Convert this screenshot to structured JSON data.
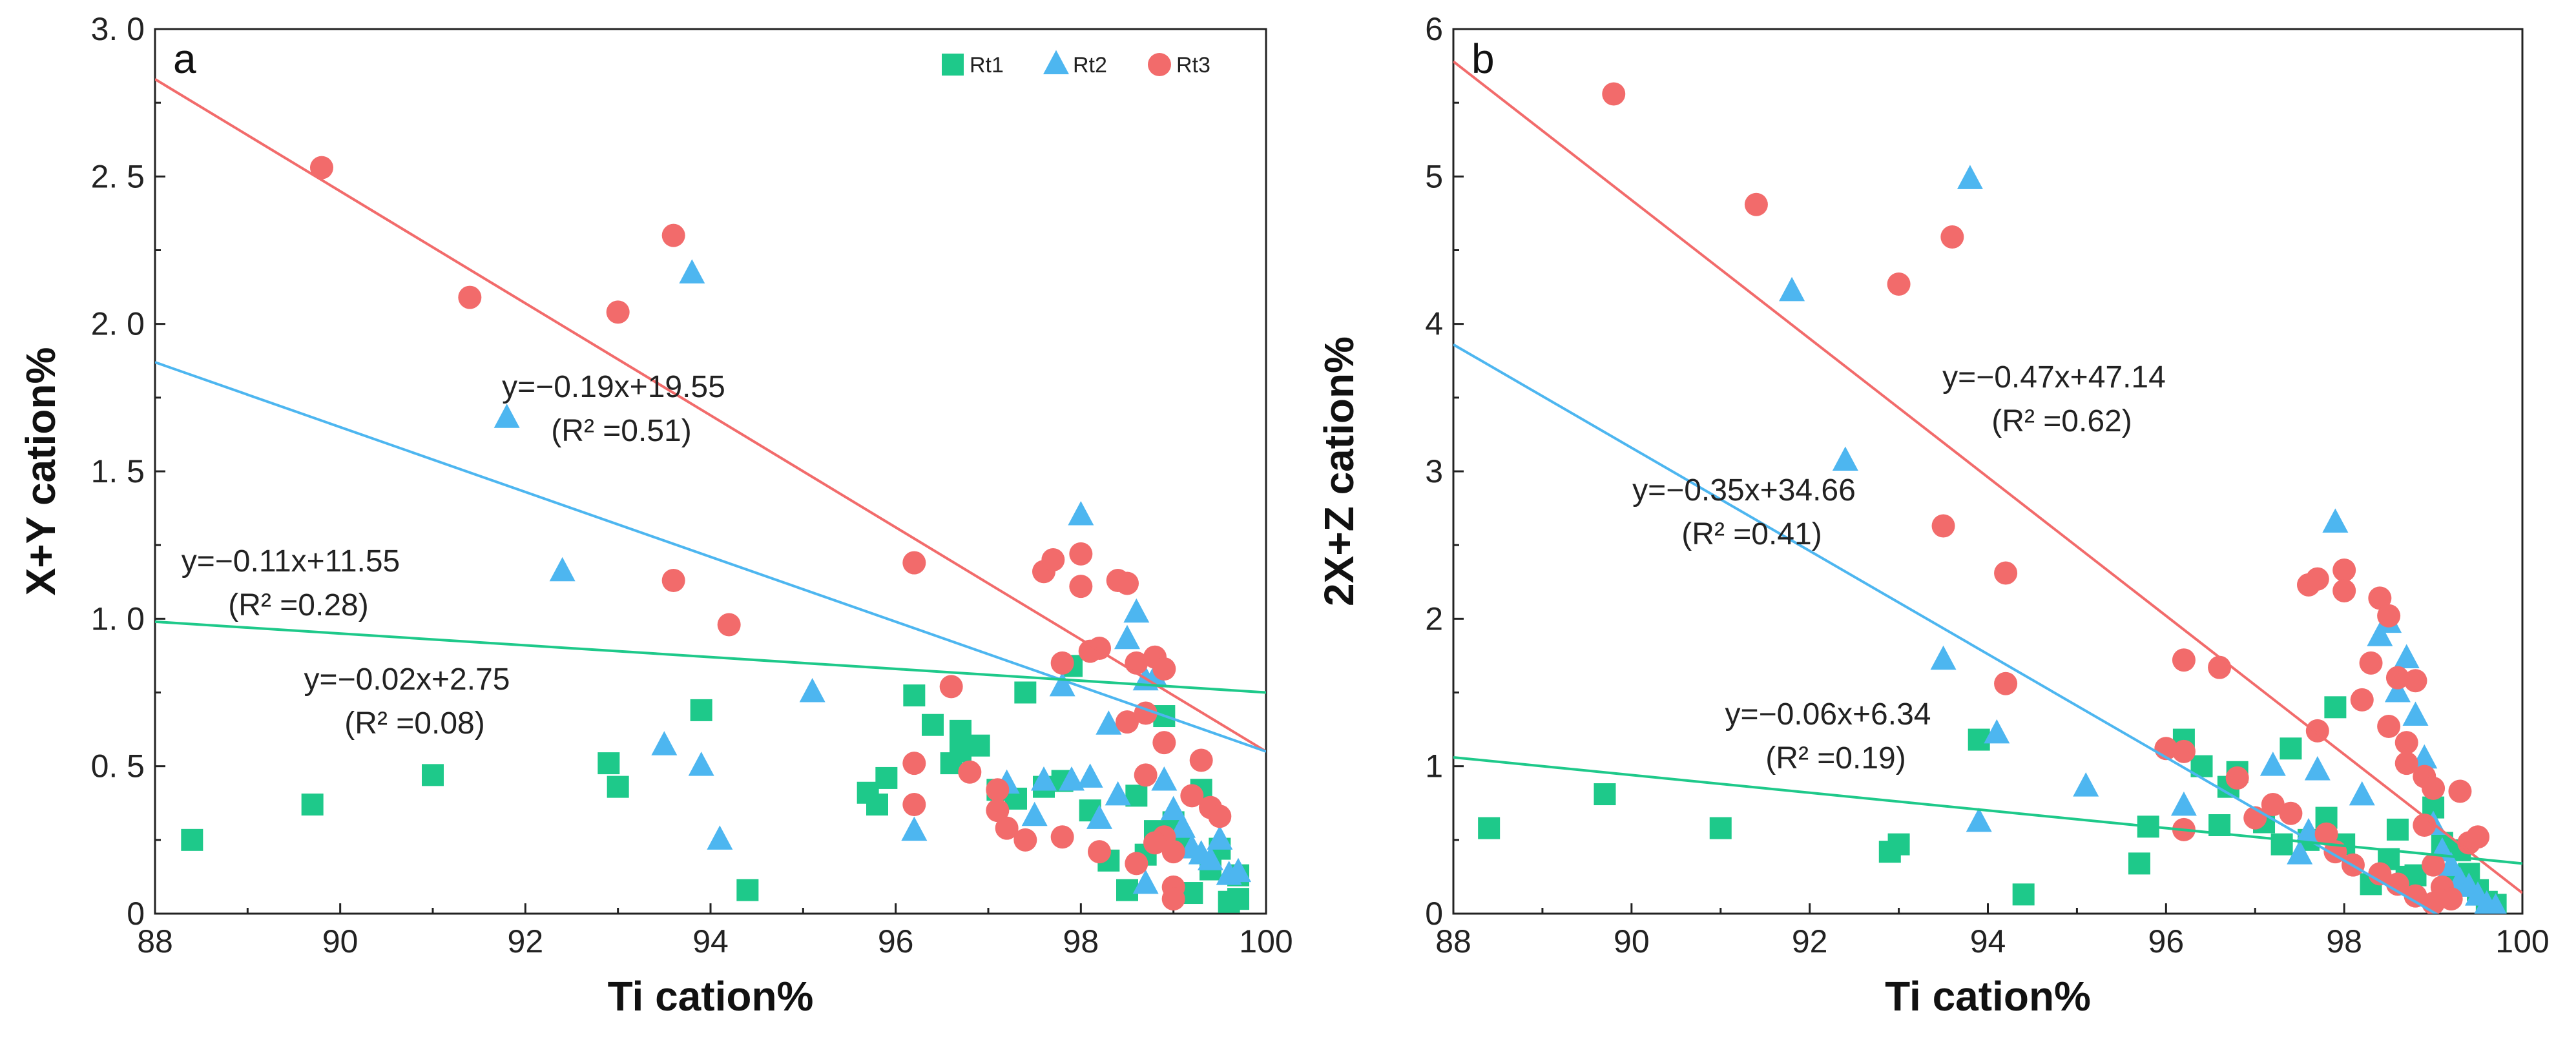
{
  "chart_data": [
    {
      "type": "scatter",
      "panel_label": "a",
      "xlabel": "Ti cation%",
      "ylabel": "X+Y cation%",
      "xlim": [
        88,
        100
      ],
      "ylim": [
        0,
        3.0
      ],
      "xticks": [
        "88",
        "90",
        "92",
        "94",
        "96",
        "98",
        "100"
      ],
      "yticks": [
        "0",
        "0. 5",
        "1. 0",
        "1. 5",
        "2. 0",
        "2. 5",
        "3. 0"
      ],
      "legend": [
        "Rt1",
        "Rt2",
        "Rt3"
      ],
      "colors": {
        "Rt1": "#1ec98a",
        "Rt2": "#4db6f0",
        "Rt3": "#f26b6b"
      },
      "fits": [
        {
          "series": "Rt3",
          "slope": -0.19,
          "intercept": 19.55,
          "equation": "y=−0.19x+19.55",
          "r2": "(R² =0.51)"
        },
        {
          "series": "Rt2",
          "slope": -0.11,
          "intercept": 11.55,
          "equation": "y=−0.11x+11.55",
          "r2": "(R² =0.28)"
        },
        {
          "series": "Rt1",
          "slope": -0.02,
          "intercept": 2.75,
          "equation": "y=−0.02x+2.75",
          "r2": "(R² =0.08)"
        }
      ],
      "series": [
        {
          "name": "Rt1",
          "marker": "square",
          "points": [
            [
              88.4,
              0.25
            ],
            [
              89.7,
              0.37
            ],
            [
              91.0,
              0.47
            ],
            [
              92.9,
              0.51
            ],
            [
              93.0,
              0.43
            ],
            [
              93.9,
              0.69
            ],
            [
              94.4,
              0.08
            ],
            [
              95.7,
              0.41
            ],
            [
              95.8,
              0.37
            ],
            [
              95.9,
              0.46
            ],
            [
              96.2,
              0.74
            ],
            [
              96.4,
              0.64
            ],
            [
              96.6,
              0.51
            ],
            [
              96.7,
              0.55
            ],
            [
              96.7,
              0.62
            ],
            [
              96.9,
              0.57
            ],
            [
              97.1,
              0.42
            ],
            [
              97.3,
              0.39
            ],
            [
              97.4,
              0.75
            ],
            [
              97.6,
              0.43
            ],
            [
              97.8,
              0.45
            ],
            [
              97.9,
              0.84
            ],
            [
              98.1,
              0.35
            ],
            [
              98.3,
              0.18
            ],
            [
              98.5,
              0.08
            ],
            [
              98.6,
              0.4
            ],
            [
              98.7,
              0.2
            ],
            [
              98.8,
              0.28
            ],
            [
              98.9,
              0.67
            ],
            [
              99.0,
              0.31
            ],
            [
              99.1,
              0.23
            ],
            [
              99.2,
              0.07
            ],
            [
              99.3,
              0.42
            ],
            [
              99.4,
              0.15
            ],
            [
              99.5,
              0.22
            ],
            [
              99.6,
              0.04
            ],
            [
              99.7,
              0.05
            ],
            [
              99.7,
              0.13
            ]
          ]
        },
        {
          "name": "Rt2",
          "marker": "triangle",
          "points": [
            [
              91.8,
              1.68
            ],
            [
              92.4,
              1.16
            ],
            [
              93.5,
              0.57
            ],
            [
              93.8,
              2.17
            ],
            [
              93.9,
              0.5
            ],
            [
              94.1,
              0.25
            ],
            [
              95.1,
              0.75
            ],
            [
              96.2,
              0.28
            ],
            [
              97.2,
              0.44
            ],
            [
              97.5,
              0.33
            ],
            [
              97.6,
              0.45
            ],
            [
              97.8,
              0.77
            ],
            [
              97.9,
              0.45
            ],
            [
              98.0,
              1.35
            ],
            [
              98.1,
              0.46
            ],
            [
              98.2,
              0.32
            ],
            [
              98.3,
              0.64
            ],
            [
              98.4,
              0.4
            ],
            [
              98.5,
              0.93
            ],
            [
              98.6,
              1.02
            ],
            [
              98.7,
              0.79
            ],
            [
              98.8,
              0.8
            ],
            [
              98.9,
              0.45
            ],
            [
              99.0,
              0.35
            ],
            [
              99.1,
              0.29
            ],
            [
              99.2,
              0.22
            ],
            [
              99.3,
              0.2
            ],
            [
              99.4,
              0.18
            ],
            [
              99.5,
              0.25
            ],
            [
              99.6,
              0.13
            ],
            [
              99.7,
              0.14
            ],
            [
              98.7,
              0.1
            ]
          ]
        },
        {
          "name": "Rt3",
          "marker": "circle",
          "points": [
            [
              89.8,
              2.53
            ],
            [
              91.4,
              2.09
            ],
            [
              93.0,
              2.04
            ],
            [
              93.6,
              2.3
            ],
            [
              93.6,
              1.13
            ],
            [
              94.2,
              0.98
            ],
            [
              96.2,
              1.19
            ],
            [
              96.2,
              0.51
            ],
            [
              96.2,
              0.37
            ],
            [
              96.6,
              0.77
            ],
            [
              96.8,
              0.48
            ],
            [
              97.1,
              0.42
            ],
            [
              97.1,
              0.35
            ],
            [
              97.2,
              0.29
            ],
            [
              97.4,
              0.25
            ],
            [
              97.6,
              1.16
            ],
            [
              97.7,
              1.2
            ],
            [
              97.8,
              0.85
            ],
            [
              97.8,
              0.26
            ],
            [
              98.0,
              1.22
            ],
            [
              98.0,
              1.11
            ],
            [
              98.1,
              0.89
            ],
            [
              98.2,
              0.9
            ],
            [
              98.2,
              0.21
            ],
            [
              98.4,
              1.13
            ],
            [
              98.5,
              1.12
            ],
            [
              98.5,
              0.65
            ],
            [
              98.6,
              0.85
            ],
            [
              98.7,
              0.68
            ],
            [
              98.7,
              0.47
            ],
            [
              98.8,
              0.87
            ],
            [
              98.9,
              0.83
            ],
            [
              98.9,
              0.58
            ],
            [
              98.9,
              0.26
            ],
            [
              99.0,
              0.21
            ],
            [
              99.0,
              0.09
            ],
            [
              99.0,
              0.05
            ],
            [
              99.2,
              0.4
            ],
            [
              99.3,
              0.52
            ],
            [
              99.4,
              0.36
            ],
            [
              99.5,
              0.33
            ],
            [
              98.6,
              0.17
            ],
            [
              98.8,
              0.24
            ]
          ]
        }
      ]
    },
    {
      "type": "scatter",
      "panel_label": "b",
      "xlabel": "Ti cation%",
      "ylabel": "2X+Z cation%",
      "xlim": [
        88,
        100
      ],
      "ylim": [
        0,
        6
      ],
      "xticks": [
        "88",
        "90",
        "92",
        "94",
        "96",
        "98",
        "100"
      ],
      "yticks": [
        "0",
        "1",
        "2",
        "3",
        "4",
        "5",
        "6"
      ],
      "colors": {
        "Rt1": "#1ec98a",
        "Rt2": "#4db6f0",
        "Rt3": "#f26b6b"
      },
      "fits": [
        {
          "series": "Rt3",
          "slope": -0.47,
          "intercept": 47.14,
          "equation": "y=−0.47x+47.14",
          "r2": "(R² =0.62)"
        },
        {
          "series": "Rt2",
          "slope": -0.35,
          "intercept": 34.66,
          "equation": "y=−0.35x+34.66",
          "r2": "(R² =0.41)"
        },
        {
          "series": "Rt1",
          "slope": -0.06,
          "intercept": 6.34,
          "equation": "y=−0.06x+6.34",
          "r2": "(R² =0.19)"
        }
      ],
      "series": [
        {
          "name": "Rt1",
          "marker": "square",
          "points": [
            [
              88.4,
              0.58
            ],
            [
              89.7,
              0.81
            ],
            [
              91.0,
              0.58
            ],
            [
              92.9,
              0.42
            ],
            [
              93.0,
              0.47
            ],
            [
              93.9,
              1.18
            ],
            [
              94.4,
              0.13
            ],
            [
              95.7,
              0.34
            ],
            [
              95.8,
              0.59
            ],
            [
              96.2,
              1.18
            ],
            [
              96.4,
              1.0
            ],
            [
              96.6,
              0.6
            ],
            [
              96.7,
              0.86
            ],
            [
              96.8,
              0.96
            ],
            [
              97.1,
              0.62
            ],
            [
              97.3,
              0.47
            ],
            [
              97.4,
              1.12
            ],
            [
              97.6,
              0.5
            ],
            [
              97.8,
              0.65
            ],
            [
              97.9,
              1.4
            ],
            [
              98.0,
              0.47
            ],
            [
              98.3,
              0.2
            ],
            [
              98.5,
              0.37
            ],
            [
              98.6,
              0.57
            ],
            [
              98.7,
              0.25
            ],
            [
              98.8,
              0.26
            ],
            [
              99.0,
              0.72
            ],
            [
              99.1,
              0.48
            ],
            [
              99.2,
              0.22
            ],
            [
              99.3,
              0.43
            ],
            [
              99.4,
              0.27
            ],
            [
              99.5,
              0.16
            ],
            [
              99.6,
              0.08
            ],
            [
              99.7,
              0.06
            ]
          ]
        },
        {
          "name": "Rt2",
          "marker": "triangle",
          "points": [
            [
              91.8,
              4.22
            ],
            [
              92.4,
              3.07
            ],
            [
              93.5,
              1.72
            ],
            [
              93.8,
              4.98
            ],
            [
              93.9,
              0.62
            ],
            [
              94.1,
              1.22
            ],
            [
              95.1,
              0.86
            ],
            [
              96.2,
              0.73
            ],
            [
              97.2,
              1.0
            ],
            [
              97.5,
              0.4
            ],
            [
              97.6,
              0.55
            ],
            [
              97.7,
              0.97
            ],
            [
              97.9,
              2.65
            ],
            [
              98.2,
              0.8
            ],
            [
              98.4,
              1.88
            ],
            [
              98.5,
              1.97
            ],
            [
              98.6,
              1.5
            ],
            [
              98.7,
              1.73
            ],
            [
              98.8,
              1.34
            ],
            [
              98.9,
              1.05
            ],
            [
              99.0,
              0.6
            ],
            [
              99.1,
              0.42
            ],
            [
              99.2,
              0.32
            ],
            [
              99.3,
              0.22
            ],
            [
              99.4,
              0.18
            ],
            [
              99.5,
              0.12
            ],
            [
              99.6,
              0.06
            ],
            [
              99.7,
              0.04
            ]
          ]
        },
        {
          "name": "Rt3",
          "marker": "circle",
          "points": [
            [
              89.8,
              5.56
            ],
            [
              91.4,
              4.81
            ],
            [
              93.0,
              4.27
            ],
            [
              93.5,
              2.63
            ],
            [
              93.6,
              4.59
            ],
            [
              94.2,
              2.31
            ],
            [
              94.2,
              1.56
            ],
            [
              96.0,
              1.12
            ],
            [
              96.2,
              1.1
            ],
            [
              96.2,
              1.72
            ],
            [
              96.2,
              0.57
            ],
            [
              96.6,
              1.67
            ],
            [
              96.8,
              0.92
            ],
            [
              97.0,
              0.65
            ],
            [
              97.2,
              0.74
            ],
            [
              97.4,
              0.68
            ],
            [
              97.6,
              2.23
            ],
            [
              97.7,
              2.27
            ],
            [
              97.7,
              1.24
            ],
            [
              97.8,
              0.54
            ],
            [
              97.9,
              0.42
            ],
            [
              98.0,
              2.33
            ],
            [
              98.0,
              2.19
            ],
            [
              98.1,
              0.33
            ],
            [
              98.2,
              1.45
            ],
            [
              98.3,
              1.7
            ],
            [
              98.4,
              2.14
            ],
            [
              98.5,
              2.02
            ],
            [
              98.5,
              1.27
            ],
            [
              98.6,
              1.6
            ],
            [
              98.7,
              1.16
            ],
            [
              98.7,
              1.02
            ],
            [
              98.8,
              1.58
            ],
            [
              98.9,
              0.93
            ],
            [
              98.9,
              0.6
            ],
            [
              99.0,
              0.85
            ],
            [
              99.0,
              0.33
            ],
            [
              99.1,
              0.18
            ],
            [
              99.2,
              0.1
            ],
            [
              99.3,
              0.83
            ],
            [
              99.4,
              0.48
            ],
            [
              99.5,
              0.52
            ],
            [
              98.4,
              0.27
            ],
            [
              98.6,
              0.2
            ],
            [
              98.8,
              0.12
            ],
            [
              99.0,
              0.07
            ]
          ]
        }
      ]
    }
  ]
}
